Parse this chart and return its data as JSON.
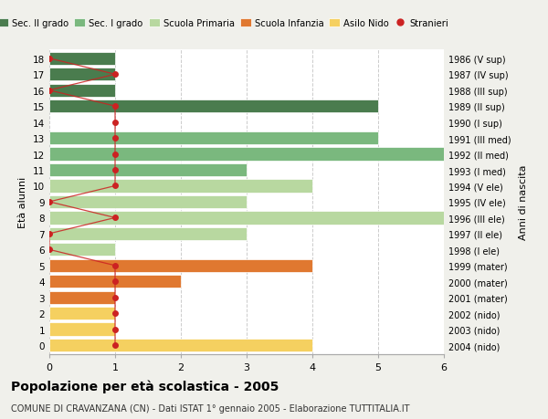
{
  "ages": [
    18,
    17,
    16,
    15,
    14,
    13,
    12,
    11,
    10,
    9,
    8,
    7,
    6,
    5,
    4,
    3,
    2,
    1,
    0
  ],
  "years": [
    "1986 (V sup)",
    "1987 (IV sup)",
    "1988 (III sup)",
    "1989 (II sup)",
    "1990 (I sup)",
    "1991 (III med)",
    "1992 (II med)",
    "1993 (I med)",
    "1994 (V ele)",
    "1995 (IV ele)",
    "1996 (III ele)",
    "1997 (II ele)",
    "1998 (I ele)",
    "1999 (mater)",
    "2000 (mater)",
    "2001 (mater)",
    "2002 (nido)",
    "2003 (nido)",
    "2004 (nido)"
  ],
  "bar_values": [
    1,
    1,
    1,
    5,
    0,
    5,
    6,
    3,
    4,
    3,
    6,
    3,
    1,
    4,
    2,
    1,
    1,
    1,
    4
  ],
  "bar_colors": [
    "#4a7c4e",
    "#4a7c4e",
    "#4a7c4e",
    "#4a7c4e",
    "#4a7c4e",
    "#7ab87e",
    "#7ab87e",
    "#7ab87e",
    "#b8d8a0",
    "#b8d8a0",
    "#b8d8a0",
    "#b8d8a0",
    "#b8d8a0",
    "#e07830",
    "#e07830",
    "#e07830",
    "#f5d060",
    "#f5d060",
    "#f5d060"
  ],
  "stranieri_x": [
    0,
    1,
    0,
    1,
    1,
    1,
    1,
    1,
    1,
    0,
    1,
    0,
    0,
    1,
    1,
    1,
    1,
    1,
    1
  ],
  "legend_labels": [
    "Sec. II grado",
    "Sec. I grado",
    "Scuola Primaria",
    "Scuola Infanzia",
    "Asilo Nido",
    "Stranieri"
  ],
  "legend_colors": [
    "#4a7c4e",
    "#7ab87e",
    "#b8d8a0",
    "#e07830",
    "#f5d060",
    "#cc2222"
  ],
  "title": "Popolazione per età scolastica - 2005",
  "subtitle": "COMUNE DI CRAVANZANA (CN) - Dati ISTAT 1° gennaio 2005 - Elaborazione TUTTITALIA.IT",
  "ylabel_left": "Età alunni",
  "ylabel_right": "Anni di nascita",
  "xlim": [
    0,
    6
  ],
  "background_color": "#f0f0eb",
  "plot_bg_color": "#ffffff"
}
